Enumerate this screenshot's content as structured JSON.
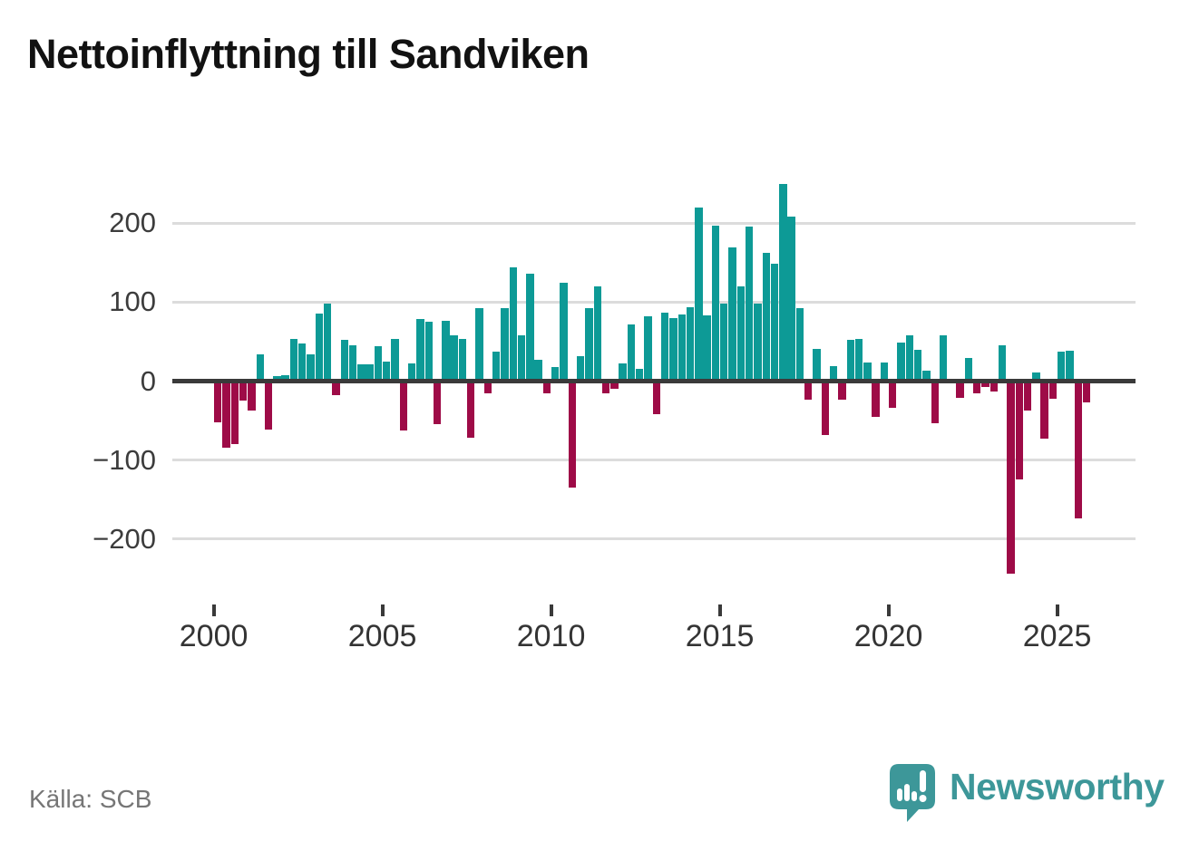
{
  "chart_data": {
    "type": "bar",
    "title": "Nettoinflyttning till Sandviken",
    "source": "Källa: SCB",
    "x_unit": "quarter",
    "years": [
      {
        "year": 2000,
        "values": [
          -52,
          -84,
          -80,
          -25
        ]
      },
      {
        "year": 2001,
        "values": [
          -37,
          34,
          -61,
          6
        ]
      },
      {
        "year": 2002,
        "values": [
          7,
          53,
          48,
          34
        ]
      },
      {
        "year": 2003,
        "values": [
          85,
          98,
          -18,
          52
        ]
      },
      {
        "year": 2004,
        "values": [
          45,
          21,
          21,
          44
        ]
      },
      {
        "year": 2005,
        "values": [
          25,
          53,
          -62,
          22
        ]
      },
      {
        "year": 2006,
        "values": [
          79,
          75,
          -55,
          76
        ]
      },
      {
        "year": 2007,
        "values": [
          58,
          53,
          -72,
          92
        ]
      },
      {
        "year": 2008,
        "values": [
          -15,
          37,
          92,
          144
        ]
      },
      {
        "year": 2009,
        "values": [
          58,
          136,
          27,
          -15
        ]
      },
      {
        "year": 2010,
        "values": [
          18,
          124,
          -135,
          32
        ]
      },
      {
        "year": 2011,
        "values": [
          92,
          120,
          -16,
          -10
        ]
      },
      {
        "year": 2012,
        "values": [
          22,
          72,
          16,
          82
        ]
      },
      {
        "year": 2013,
        "values": [
          -42,
          87,
          80,
          84
        ]
      },
      {
        "year": 2014,
        "values": [
          94,
          220,
          83,
          197
        ]
      },
      {
        "year": 2015,
        "values": [
          98,
          169,
          120,
          196
        ]
      },
      {
        "year": 2016,
        "values": [
          98,
          162,
          148,
          249
        ]
      },
      {
        "year": 2017,
        "values": [
          208,
          92,
          -24,
          41
        ]
      },
      {
        "year": 2018,
        "values": [
          -68,
          19,
          -23,
          52
        ]
      },
      {
        "year": 2019,
        "values": [
          53,
          24,
          -45,
          23
        ]
      },
      {
        "year": 2020,
        "values": [
          -34,
          49,
          58,
          39
        ]
      },
      {
        "year": 2021,
        "values": [
          13,
          -53,
          58,
          0
        ]
      },
      {
        "year": 2022,
        "values": [
          -21,
          29,
          -16,
          -7
        ]
      },
      {
        "year": 2023,
        "values": [
          -13,
          45,
          -244,
          -124
        ]
      },
      {
        "year": 2024,
        "values": [
          -37,
          11,
          -73,
          -22
        ]
      },
      {
        "year": 2025,
        "values": [
          37,
          38,
          -174,
          -27
        ]
      }
    ],
    "y_axis": {
      "ticks": [
        {
          "value": 200,
          "label": "200"
        },
        {
          "value": 100,
          "label": "100"
        },
        {
          "value": 0,
          "label": "0"
        },
        {
          "value": -100,
          "label": "−100"
        },
        {
          "value": -200,
          "label": "−200"
        }
      ],
      "range": [
        -260,
        262
      ],
      "gridlines": true
    },
    "x_axis": {
      "ticks": [
        {
          "quarter_index": 0,
          "label": "2000"
        },
        {
          "quarter_index": 20,
          "label": "2005"
        },
        {
          "quarter_index": 40,
          "label": "2010"
        },
        {
          "quarter_index": 60,
          "label": "2015"
        },
        {
          "quarter_index": 80,
          "label": "2020"
        },
        {
          "quarter_index": 100,
          "label": "2025"
        }
      ]
    },
    "colors": {
      "positive": "#0D9A96",
      "negative": "#9E0B47",
      "axis": "#3a3a3a",
      "gridline": "#dcdcdc"
    },
    "legend": null
  },
  "branding": {
    "wordmark": "Newsworthy",
    "logo_color": "#3D9799"
  }
}
